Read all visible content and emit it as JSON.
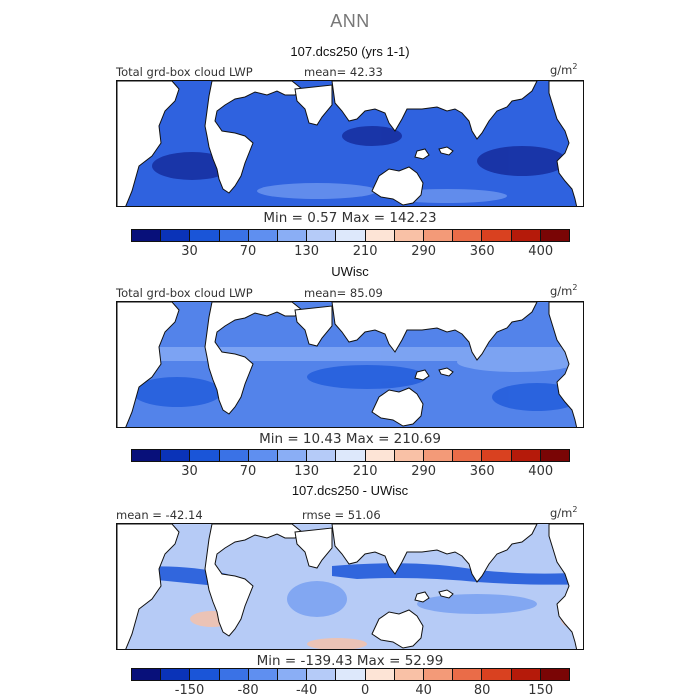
{
  "figure": {
    "title": "ANN"
  },
  "palettes": {
    "lwp": [
      "#08107a",
      "#0a33b8",
      "#1a55d8",
      "#3a72e6",
      "#5f8ff0",
      "#8aaef5",
      "#b5cbf8",
      "#dde8fb",
      "#fde4d6",
      "#f9c1a6",
      "#f39a78",
      "#ea6c48",
      "#d94120",
      "#b51a0a",
      "#7a0505"
    ],
    "diff": [
      "#08107a",
      "#0a33b8",
      "#1a55d8",
      "#3a72e6",
      "#5f8ff0",
      "#8aaef5",
      "#b5cbf8",
      "#dde8fb",
      "#fde4d6",
      "#f9c1a6",
      "#f39a78",
      "#ea6c48",
      "#d94120",
      "#b51a0a",
      "#7a0505"
    ]
  },
  "panels": [
    {
      "title": "107.dcs250 (yrs 1-1)",
      "left_label": "Total grd-box cloud LWP",
      "center_label": "mean=  42.33",
      "units": "g/m",
      "units_sup": "2",
      "min_max": "Min =   0.57  Max =  142.23",
      "ticks": [
        "30",
        "70",
        "130",
        "210",
        "290",
        "360",
        "400"
      ],
      "ocean_color": "#2f62df"
    },
    {
      "title": "UWisc",
      "left_label": "Total grd-box cloud LWP",
      "center_label": "mean=  85.09",
      "units": "g/m",
      "units_sup": "2",
      "min_max": "Min =  10.43  Max =  210.69",
      "ticks": [
        "30",
        "70",
        "130",
        "210",
        "290",
        "360",
        "400"
      ],
      "ocean_color": "#5383ea"
    },
    {
      "title": "107.dcs250 - UWisc",
      "left_label": "mean = -42.14",
      "center_label": "rmse =  51.06",
      "units": "g/m",
      "units_sup": "2",
      "min_max": "Min = -139.43  Max =  52.99",
      "ticks": [
        "-150",
        "-80",
        "-40",
        "0",
        "40",
        "80",
        "150"
      ],
      "ocean_color": "#b6cbf6"
    }
  ]
}
